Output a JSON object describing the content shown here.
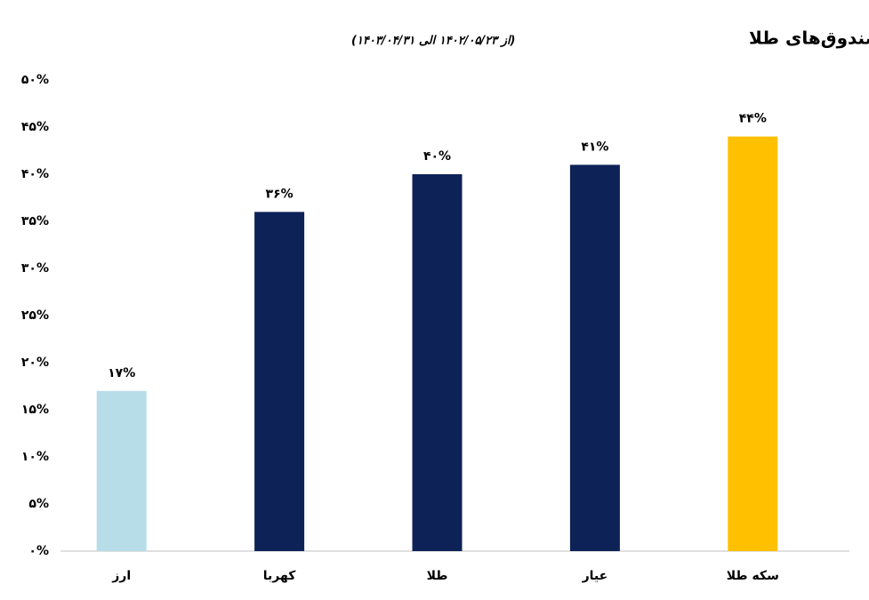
{
  "chart_data": {
    "type": "bar",
    "title": "مقایسه بازدهی ارز، سکه طلا و صندوق‌های طلا",
    "subtitle": "(از ۱۴۰۲/۰۵/۲۳ الی ۱۴۰۳/۰۴/۳۱)",
    "categories": [
      "ارز",
      "کهربا",
      "طلا",
      "عیار",
      "سکه طلا"
    ],
    "values": [
      17,
      36,
      40,
      41,
      44
    ],
    "value_labels": [
      "۱۷%",
      "۳۶%",
      "۴۰%",
      "۴۱%",
      "۴۴%"
    ],
    "colors": [
      "#b7dde8",
      "#0d2357",
      "#0d2357",
      "#0d2357",
      "#ffc000"
    ],
    "ylim": [
      0,
      50
    ],
    "yticks": [
      {
        "value": 0,
        "label": "۰%"
      },
      {
        "value": 5,
        "label": "۵%"
      },
      {
        "value": 10,
        "label": "۱۰%"
      },
      {
        "value": 15,
        "label": "۱۵%"
      },
      {
        "value": 20,
        "label": "۲۰%"
      },
      {
        "value": 25,
        "label": "۲۵%"
      },
      {
        "value": 30,
        "label": "۳۰%"
      },
      {
        "value": 35,
        "label": "۳۵%"
      },
      {
        "value": 40,
        "label": "۴۰%"
      },
      {
        "value": 45,
        "label": "۴۵%"
      },
      {
        "value": 50,
        "label": "۵۰%"
      }
    ],
    "grid": false
  }
}
